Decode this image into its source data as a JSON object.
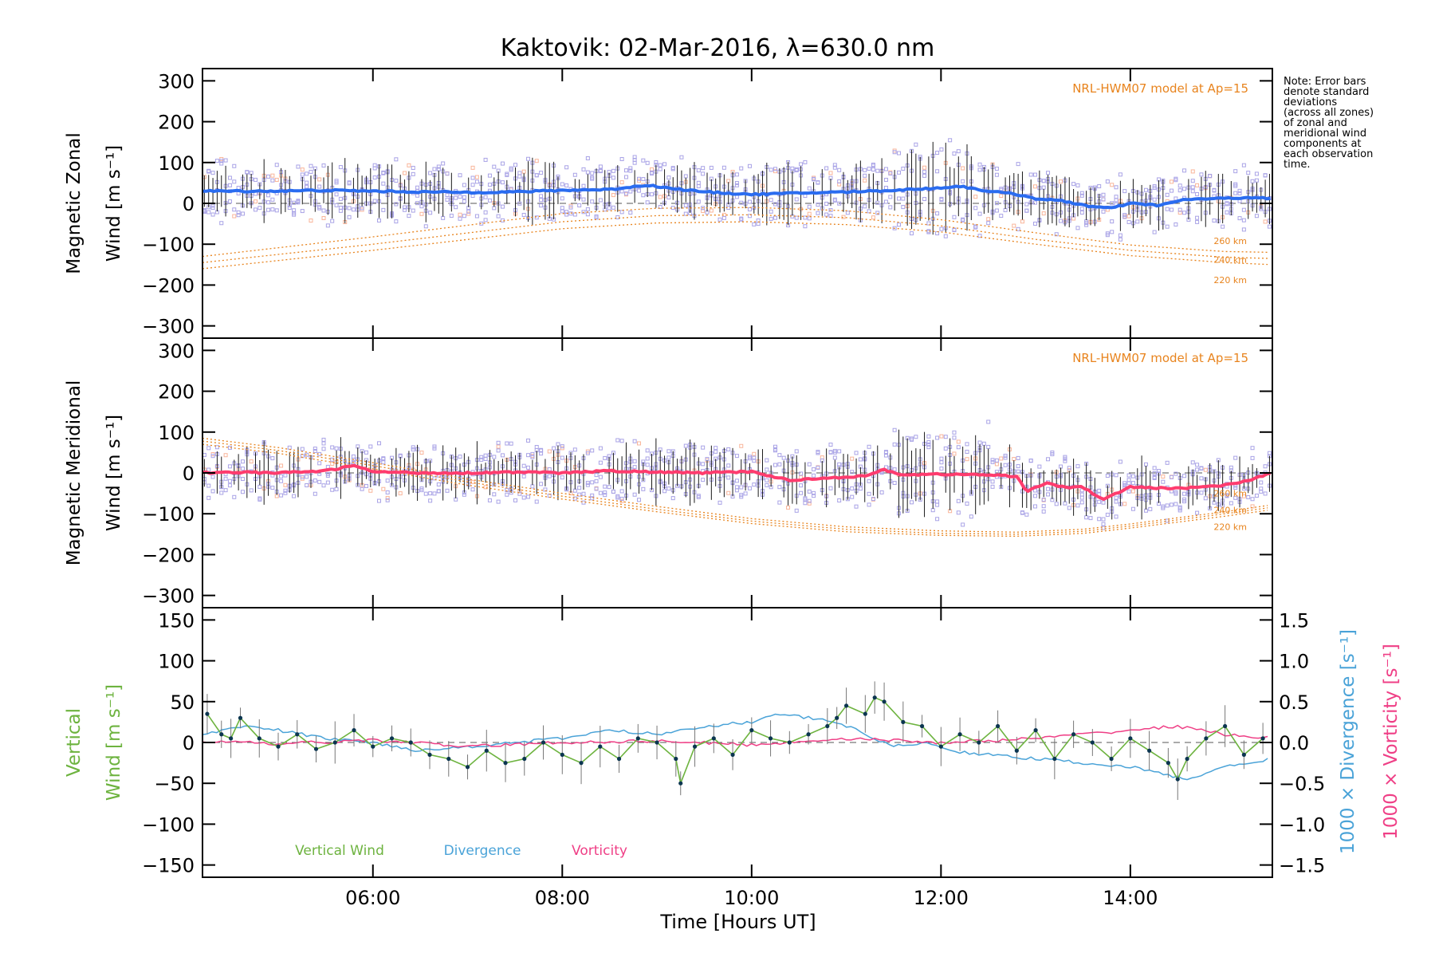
{
  "figure": {
    "title": "Kaktovik: 02-Mar-2016, λ=630.0 nm",
    "xlabel": "Time [Hours UT]",
    "note_lines": [
      "Note: Error bars",
      "denote standard",
      "deviations",
      "(across all zones)",
      "of zonal and",
      "meridional wind",
      "components at",
      "each observation",
      "time."
    ],
    "colors": {
      "zonal_mean": "#2a6cf0",
      "meridional_mean": "#ff3c6e",
      "model": "#e8841e",
      "scatter_zonal": "#a9a3e6",
      "scatter_salmon": "#f9b59a",
      "vertical": "#6db33f",
      "divergence": "#4aa3d8",
      "vorticity": "#ef3f86"
    }
  },
  "chart_data": [
    {
      "type": "line",
      "ylabel_lines": [
        "Magnetic Zonal",
        "Wind [m s⁻¹]"
      ],
      "xlim": [
        4.2,
        15.5
      ],
      "ylim": [
        -330,
        330
      ],
      "x_ticks": [
        6,
        8,
        10,
        12,
        14
      ],
      "y_ticks": [
        -300,
        -200,
        -100,
        0,
        100,
        200,
        300
      ],
      "model_label": "NRL-HWM07 model at Ap=15",
      "model_altitude_labels": [
        "260 km",
        "240 km",
        "220 km"
      ],
      "mean": {
        "x": [
          4.2,
          4.5,
          5.0,
          5.5,
          6.0,
          6.5,
          7.0,
          7.5,
          8.0,
          8.5,
          8.9,
          9.1,
          9.5,
          10.0,
          10.5,
          11.0,
          11.5,
          12.0,
          12.2,
          12.5,
          12.8,
          13.0,
          13.3,
          13.6,
          13.8,
          14.0,
          14.3,
          14.6,
          15.0,
          15.3,
          15.5
        ],
        "y": [
          30,
          30,
          30,
          32,
          30,
          28,
          27,
          28,
          32,
          34,
          45,
          38,
          28,
          22,
          25,
          28,
          32,
          38,
          42,
          30,
          22,
          12,
          5,
          -8,
          -12,
          0,
          -5,
          10,
          12,
          15,
          10
        ]
      },
      "models": [
        {
          "name": "260 km",
          "x": [
            4.2,
            6,
            8,
            9,
            10,
            11,
            12,
            13,
            14,
            15,
            15.5
          ],
          "y": [
            -130,
            -82,
            -25,
            -12,
            -10,
            -18,
            -40,
            -72,
            -102,
            -118,
            -120
          ]
        },
        {
          "name": "240 km",
          "x": [
            4.2,
            6,
            8,
            9,
            10,
            11,
            12,
            13,
            14,
            15,
            15.5
          ],
          "y": [
            -145,
            -100,
            -45,
            -30,
            -28,
            -35,
            -55,
            -88,
            -115,
            -132,
            -135
          ]
        },
        {
          "name": "220 km",
          "x": [
            4.2,
            6,
            8,
            9,
            10,
            11,
            12,
            13,
            14,
            15,
            15.5
          ],
          "y": [
            -160,
            -115,
            -62,
            -48,
            -45,
            -52,
            -70,
            -100,
            -128,
            -145,
            -150
          ]
        }
      ]
    },
    {
      "type": "line",
      "ylabel_lines": [
        "Magnetic Meridional",
        "Wind [m s⁻¹]"
      ],
      "xlim": [
        4.2,
        15.5
      ],
      "ylim": [
        -330,
        330
      ],
      "x_ticks": [
        6,
        8,
        10,
        12,
        14
      ],
      "y_ticks": [
        -300,
        -200,
        -100,
        0,
        100,
        200,
        300
      ],
      "model_label": "NRL-HWM07 model at Ap=15",
      "model_altitude_labels": [
        "260 km",
        "240 km",
        "220 km"
      ],
      "mean": {
        "x": [
          4.2,
          4.5,
          5.0,
          5.5,
          5.8,
          6.0,
          6.5,
          7.0,
          7.5,
          8.0,
          8.5,
          9.0,
          9.5,
          10.0,
          10.4,
          10.8,
          11.2,
          11.4,
          11.6,
          12.0,
          12.5,
          12.8,
          12.9,
          13.1,
          13.3,
          13.5,
          13.7,
          14.0,
          14.5,
          15.0,
          15.3,
          15.5
        ],
        "y": [
          0,
          2,
          0,
          5,
          18,
          3,
          0,
          0,
          2,
          0,
          5,
          2,
          0,
          3,
          -18,
          -12,
          -8,
          8,
          -5,
          -3,
          -5,
          -8,
          -45,
          -25,
          -35,
          -35,
          -65,
          -35,
          -38,
          -30,
          -15,
          0
        ]
      },
      "models": [
        {
          "name": "260 km",
          "x": [
            4.2,
            5,
            6,
            7,
            8,
            9,
            10,
            11,
            12,
            12.8,
            13.5,
            14,
            15,
            15.5
          ],
          "y": [
            85,
            62,
            25,
            -15,
            -50,
            -82,
            -112,
            -132,
            -142,
            -145,
            -138,
            -125,
            -95,
            -78
          ]
        },
        {
          "name": "240 km",
          "x": [
            4.2,
            5,
            6,
            7,
            8,
            9,
            10,
            11,
            12,
            12.8,
            13.5,
            14,
            15,
            15.5
          ],
          "y": [
            78,
            55,
            18,
            -22,
            -57,
            -89,
            -118,
            -138,
            -148,
            -150,
            -143,
            -130,
            -100,
            -84
          ]
        },
        {
          "name": "220 km",
          "x": [
            4.2,
            5,
            6,
            7,
            8,
            9,
            10,
            11,
            12,
            12.8,
            13.5,
            14,
            15,
            15.5
          ],
          "y": [
            70,
            48,
            10,
            -30,
            -64,
            -95,
            -124,
            -144,
            -153,
            -155,
            -148,
            -135,
            -106,
            -90
          ]
        }
      ]
    },
    {
      "type": "line",
      "ylabel_lines": [
        "Vertical",
        "Wind [m s⁻¹]"
      ],
      "ylabel_right_1": "1000 × Divergence [s⁻¹]",
      "ylabel_right_2": "1000 × Vorticity [s⁻¹]",
      "xlim": [
        4.2,
        15.5
      ],
      "ylim": [
        -165,
        165
      ],
      "y2lim": [
        -1.65,
        1.65
      ],
      "x_ticks": [
        6,
        8,
        10,
        12,
        14
      ],
      "x_tick_labels": [
        "06:00",
        "08:00",
        "10:00",
        "12:00",
        "14:00"
      ],
      "y_ticks": [
        -150,
        -100,
        -50,
        0,
        50,
        100,
        150
      ],
      "y2_ticks": [
        -1.5,
        -1.0,
        -0.5,
        0.0,
        0.5,
        1.0,
        1.5
      ],
      "y2_tick_labels": [
        "−1.5",
        "−1.0",
        "−0.5",
        "0.0",
        "0.5",
        "1.0",
        "1.5"
      ],
      "legend": [
        "Vertical Wind",
        "Divergence",
        "Vorticity"
      ],
      "series": [
        {
          "name": "Vertical Wind",
          "x": [
            4.25,
            4.4,
            4.5,
            4.6,
            4.8,
            5.0,
            5.2,
            5.4,
            5.6,
            5.8,
            6.0,
            6.2,
            6.4,
            6.6,
            6.8,
            7.0,
            7.2,
            7.4,
            7.6,
            7.8,
            8.0,
            8.2,
            8.4,
            8.6,
            8.8,
            9.0,
            9.2,
            9.25,
            9.4,
            9.6,
            9.8,
            10.0,
            10.2,
            10.4,
            10.6,
            10.8,
            10.9,
            11.0,
            11.2,
            11.3,
            11.4,
            11.6,
            11.8,
            12.0,
            12.2,
            12.4,
            12.6,
            12.8,
            13.0,
            13.2,
            13.4,
            13.6,
            13.8,
            14.0,
            14.2,
            14.4,
            14.5,
            14.6,
            14.8,
            15.0,
            15.2,
            15.4
          ],
          "y": [
            35,
            10,
            5,
            30,
            5,
            -5,
            10,
            -8,
            0,
            15,
            -5,
            5,
            0,
            -15,
            -20,
            -30,
            -10,
            -25,
            -20,
            0,
            -15,
            -25,
            -5,
            -20,
            5,
            0,
            -20,
            -50,
            -5,
            5,
            -15,
            15,
            5,
            0,
            10,
            20,
            30,
            45,
            35,
            55,
            50,
            25,
            20,
            -5,
            10,
            0,
            20,
            -10,
            15,
            -20,
            10,
            0,
            -20,
            5,
            -10,
            -25,
            -45,
            -20,
            5,
            20,
            -15,
            5
          ]
        },
        {
          "name": "Divergence",
          "x": [
            4.2,
            4.6,
            5.0,
            5.5,
            6.0,
            6.5,
            7.0,
            7.5,
            8.0,
            8.5,
            9.0,
            9.5,
            10.0,
            10.3,
            10.6,
            10.9,
            11.2,
            11.5,
            11.8,
            12.1,
            12.5,
            13.0,
            13.5,
            14.0,
            14.4,
            14.6,
            15.0,
            15.5
          ],
          "y": [
            0.1,
            0.2,
            0.15,
            0.05,
            0.0,
            -0.1,
            -0.05,
            0.0,
            0.05,
            0.15,
            0.1,
            0.2,
            0.25,
            0.35,
            0.3,
            0.25,
            0.1,
            -0.05,
            0.0,
            -0.1,
            -0.15,
            -0.2,
            -0.25,
            -0.3,
            -0.4,
            -0.45,
            -0.3,
            -0.2
          ]
        },
        {
          "name": "Vorticity",
          "x": [
            4.2,
            5.0,
            6.0,
            7.0,
            8.0,
            9.0,
            10.0,
            11.0,
            12.0,
            12.5,
            13.0,
            13.5,
            14.0,
            14.5,
            15.0,
            15.5
          ],
          "y": [
            0.02,
            -0.02,
            0.03,
            -0.05,
            0.0,
            0.02,
            -0.03,
            0.05,
            0.0,
            0.02,
            0.05,
            0.1,
            0.15,
            0.2,
            0.1,
            0.05
          ]
        }
      ]
    }
  ]
}
